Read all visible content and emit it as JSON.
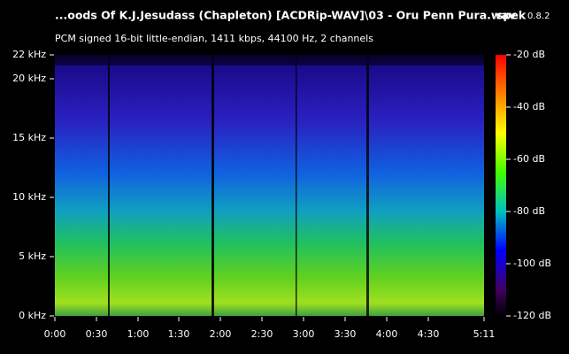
{
  "header": {
    "title": "...oods Of K.J.Jesudass (Chapleton) [ACDRip-WAV]\\03 - Oru Penn Pura.wav",
    "app_name": "spek",
    "app_version": "0.8.2",
    "subtitle": "PCM signed 16-bit little-endian, 1411 kbps, 44100 Hz, 2 channels"
  },
  "frequency_axis": {
    "labels": [
      "22 kHz",
      "20 kHz",
      "15 kHz",
      "10 kHz",
      "5 kHz",
      "0 kHz"
    ]
  },
  "time_axis": {
    "labels": [
      "0:00",
      "0:30",
      "1:00",
      "1:30",
      "2:00",
      "2:30",
      "3:00",
      "3:30",
      "4:00",
      "4:30",
      "5:11"
    ]
  },
  "level_scale": {
    "labels": [
      "-20 dB",
      "-40 dB",
      "-60 dB",
      "-80 dB",
      "-100 dB",
      "-120 dB"
    ]
  }
}
